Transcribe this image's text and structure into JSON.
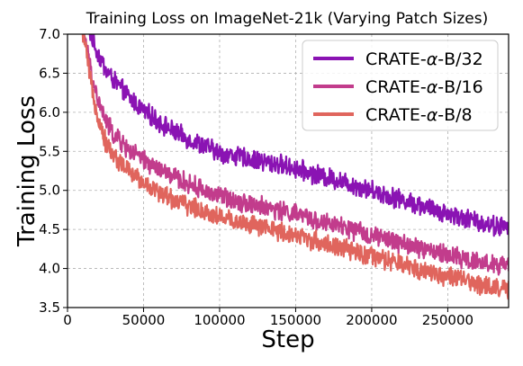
{
  "chart_data": {
    "type": "line",
    "title": "Training Loss on ImageNet-21k (Varying Patch Sizes)",
    "xlabel": "Step",
    "ylabel": "Training Loss",
    "xlim": [
      0,
      290000
    ],
    "ylim": [
      3.5,
      7.0
    ],
    "x_ticks": [
      0,
      50000,
      100000,
      150000,
      200000,
      250000
    ],
    "y_ticks": [
      3.5,
      4.0,
      4.5,
      5.0,
      5.5,
      6.0,
      6.5,
      7.0
    ],
    "x_tick_labels": [
      "0",
      "50000",
      "100000",
      "150000",
      "200000",
      "250000"
    ],
    "y_tick_labels": [
      "3.5",
      "4.0",
      "4.5",
      "5.0",
      "5.5",
      "6.0",
      "6.5",
      "7.0"
    ],
    "grid": true,
    "legend_position": "top-right",
    "series": [
      {
        "name": "CRATE-α-B/32",
        "legend_prefix": "CRATE-",
        "legend_alpha": "α",
        "legend_suffix": "-B/32",
        "color": "#8a13b3",
        "x": [
          10000,
          15000,
          20000,
          25000,
          30000,
          40000,
          50000,
          60000,
          70000,
          80000,
          90000,
          100000,
          120000,
          140000,
          150000,
          160000,
          180000,
          200000,
          220000,
          240000,
          260000,
          280000,
          290000
        ],
        "y": [
          7.3,
          7.0,
          6.75,
          6.55,
          6.42,
          6.2,
          6.02,
          5.88,
          5.75,
          5.65,
          5.57,
          5.48,
          5.4,
          5.33,
          5.28,
          5.22,
          5.12,
          5.0,
          4.88,
          4.76,
          4.65,
          4.55,
          4.52
        ]
      },
      {
        "name": "CRATE-α-B/16",
        "legend_prefix": "CRATE-",
        "legend_alpha": "α",
        "legend_suffix": "-B/16",
        "color": "#c23c8c",
        "x": [
          8000,
          12000,
          15000,
          20000,
          25000,
          30000,
          40000,
          50000,
          60000,
          70000,
          80000,
          90000,
          100000,
          120000,
          140000,
          150000,
          160000,
          180000,
          200000,
          220000,
          240000,
          260000,
          280000,
          290000
        ],
        "y": [
          7.3,
          6.9,
          6.55,
          6.15,
          5.9,
          5.72,
          5.52,
          5.38,
          5.27,
          5.17,
          5.08,
          5.0,
          4.93,
          4.83,
          4.74,
          4.7,
          4.63,
          4.53,
          4.42,
          4.32,
          4.22,
          4.13,
          4.05,
          4.02
        ]
      },
      {
        "name": "CRATE-α-B/8",
        "legend_prefix": "CRATE-",
        "legend_alpha": "α",
        "legend_suffix": "-B/8",
        "color": "#e0655d",
        "x": [
          8000,
          12000,
          15000,
          20000,
          25000,
          30000,
          40000,
          50000,
          60000,
          70000,
          80000,
          90000,
          100000,
          120000,
          140000,
          150000,
          160000,
          180000,
          200000,
          220000,
          240000,
          260000,
          280000,
          290000
        ],
        "y": [
          7.3,
          6.8,
          6.4,
          5.95,
          5.62,
          5.45,
          5.25,
          5.1,
          4.98,
          4.88,
          4.8,
          4.73,
          4.66,
          4.56,
          4.47,
          4.43,
          4.37,
          4.26,
          4.15,
          4.05,
          3.95,
          3.85,
          3.76,
          3.72
        ]
      }
    ]
  }
}
